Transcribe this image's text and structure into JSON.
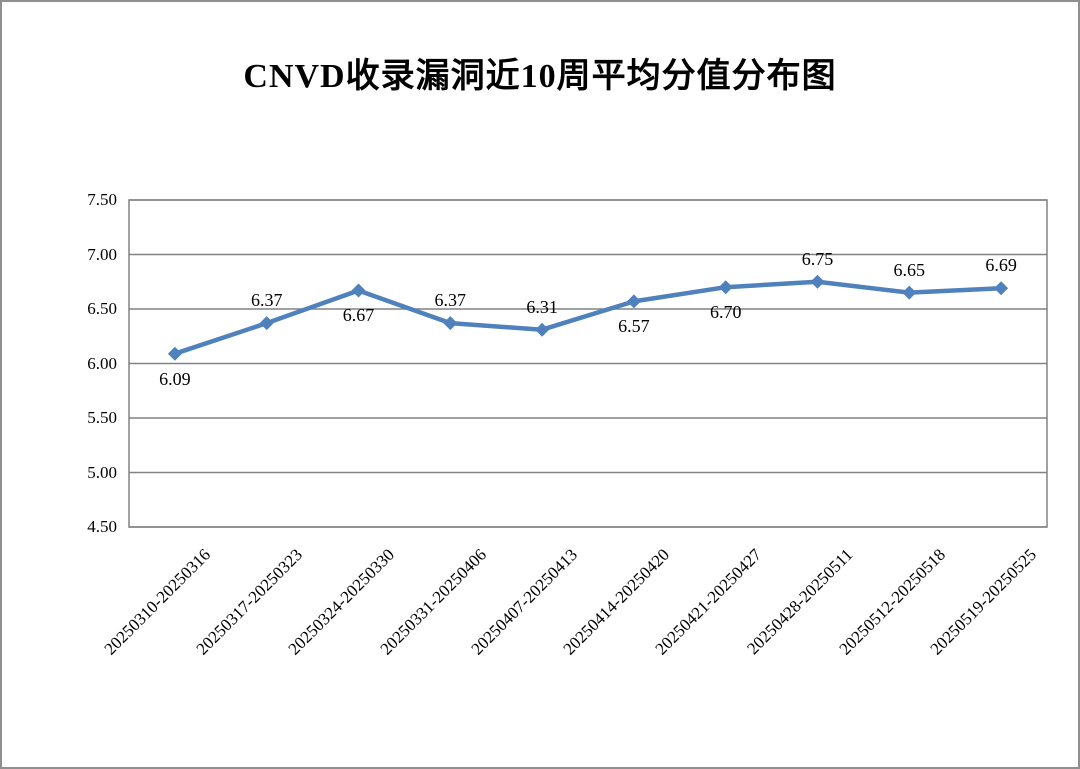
{
  "page": {
    "background": "#ffffff",
    "frame_border_color": "#8f8f8f"
  },
  "chart_data": {
    "type": "line",
    "title": "CNVD收录漏洞近10周平均分值分布图",
    "categories": [
      "20250310-20250316",
      "20250317-20250323",
      "20250324-20250330",
      "20250331-20250406",
      "20250407-20250413",
      "20250414-20250420",
      "20250421-20250427",
      "20250428-20250511",
      "20250512-20250518",
      "20250519-20250525"
    ],
    "values": [
      6.09,
      6.37,
      6.67,
      6.37,
      6.31,
      6.57,
      6.7,
      6.75,
      6.65,
      6.69
    ],
    "value_labels": [
      "6.09",
      "6.37",
      "6.67",
      "6.37",
      "6.31",
      "6.57",
      "6.70",
      "6.75",
      "6.65",
      "6.69"
    ],
    "value_label_positions": [
      "below",
      "above",
      "below",
      "above",
      "above",
      "below",
      "below",
      "above",
      "above",
      "above"
    ],
    "xlabel": "",
    "ylabel": "",
    "ylim": [
      4.5,
      7.5
    ],
    "ytick_labels": [
      "7.50",
      "7.00",
      "6.50",
      "6.00",
      "5.50",
      "5.00",
      "4.50"
    ],
    "grid": true,
    "legend": "none",
    "marker": "diamond",
    "line_color": "#4F81BD",
    "marker_color": "#4F81BD",
    "gridline_color": "#828282",
    "plot_border_color": "#828282",
    "text_color": "#000000"
  }
}
